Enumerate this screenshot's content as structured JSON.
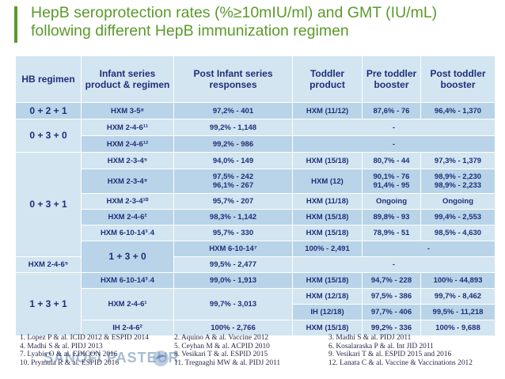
{
  "title": "HepB seroprotection rates (%≥10mIU/ml) and GMT (IU/mL) following different HepB immunization regimen",
  "headers": {
    "hb_regimen": "HB regimen",
    "infant_series": "Infant series product & regimen",
    "post_infant": "Post Infant series responses",
    "toddler": "Toddler product",
    "pre_toddler": "Pre toddler booster",
    "post_toddler": "Post toddler booster"
  },
  "groups": {
    "g1": "0 + 2 + 1",
    "g2": "0 + 3 + 0",
    "g3": "0 + 3 + 1",
    "g4": "1 + 3 + 0",
    "g5": "1 + 3 + 1"
  },
  "rows": [
    {
      "infant": "HXM 3-5⁸",
      "post": "97,2% - 401",
      "toddler": "HXM (11/12)",
      "pre": "87,6% - 76",
      "postb": "96,4% - 1,370"
    },
    {
      "infant": "HXM 2-4-6¹¹",
      "post": "99,2% - 1,148",
      "merged": "-"
    },
    {
      "infant": "HXM 2-4-6¹²",
      "post": "99,2% - 986",
      "merged": "-"
    },
    {
      "infant": "HXM 2-3-4⁵",
      "post": "94,0% - 149",
      "toddler": "HXM (15/18)",
      "pre": "80,7% - 44",
      "postb": "97,3% - 1,379"
    },
    {
      "infant": "HXM 2-3-4⁹",
      "post1": "97,5% - 242",
      "post2": "96,1% - 267",
      "toddler": "HXM (12)",
      "pre1": "90,1% - 76",
      "pre2": "91,4% - 95",
      "postb1": "98,9% - 2,230",
      "postb2": "98,9% - 2,233"
    },
    {
      "infant": "HXM 2-3-4¹⁰",
      "post": "95,7% - 207",
      "toddler": "HXM (11/18)",
      "pre": "Ongoing",
      "postb": "Ongoing"
    },
    {
      "infant": "HXM 2-4-6²",
      "post": "98,3% - 1,142",
      "toddler": "HXM (15/18)",
      "pre": "89,8% - 93",
      "postb": "99,4% - 2,553"
    },
    {
      "infant": "HXM 6-10-14³˒4",
      "post": "95,7% - 330",
      "toddler": "HXM (15/18)",
      "pre": "78,9% - 51",
      "postb": "98,5% - 4,630"
    },
    {
      "infant": "HXM 6-10-14⁷",
      "post": "100% - 2,491",
      "merged": "-"
    },
    {
      "infant": "HXM 2-4-6⁵",
      "post": "99,5% - 2,477",
      "merged": "-"
    },
    {
      "infant": "HXM 6-10-14³˒4",
      "post": "99,0% - 1,913",
      "toddler": "HXM (15/18)",
      "pre": "94,7% - 228",
      "postb": "100% - 44,893"
    },
    {
      "infant": "HXM 2-4-6¹",
      "post": "99,7% - 3,013",
      "toddler": "HXM (12/18)",
      "pre": "97,5% - 386",
      "postb": "99,7% - 8,462"
    },
    {
      "toddler": "IH (12/18)",
      "pre": "97,7% - 406",
      "postb": "99,5% - 11,218"
    },
    {
      "infant": "IH 2-4-6²",
      "post": "100% - 2,766",
      "toddler": "HXM (15/18)",
      "pre": "99,2% - 336",
      "postb": "100% - 9,688"
    }
  ],
  "references": {
    "col1": [
      "1. Lopez P & al. ICID 2012 & ESPID 2014",
      "4. Madhi S & al. PIDJ 2013",
      "7. Lyabis O & al. EDICON 2016",
      "10. Prymula R & al. ESPID 2016"
    ],
    "col2": [
      "2. Aquino A & al. Vaccine 2012",
      "5. Ceyhan M & al. ACPID 2010",
      "8. Vesikari T & al. ESPID 2015",
      "11. Tregnaghi MW & al. PIDJ 2011"
    ],
    "col3": [
      "3. Madhi S & al. PIDJ 2011",
      "6. Kosalaraska P & al. Int JID 2011",
      "9. Vesikari T & al. ESPID 2015 and 2016",
      "12. Lanata C & al. Vaccine & Vaccinations 2012"
    ]
  },
  "logo_text": "SANOFI PASTEUR",
  "colors": {
    "title": "#5b9a2a",
    "header_bg": "#d2e5f1",
    "row_alt_bg": "#b9d4e8",
    "text": "#1f2f7a"
  }
}
